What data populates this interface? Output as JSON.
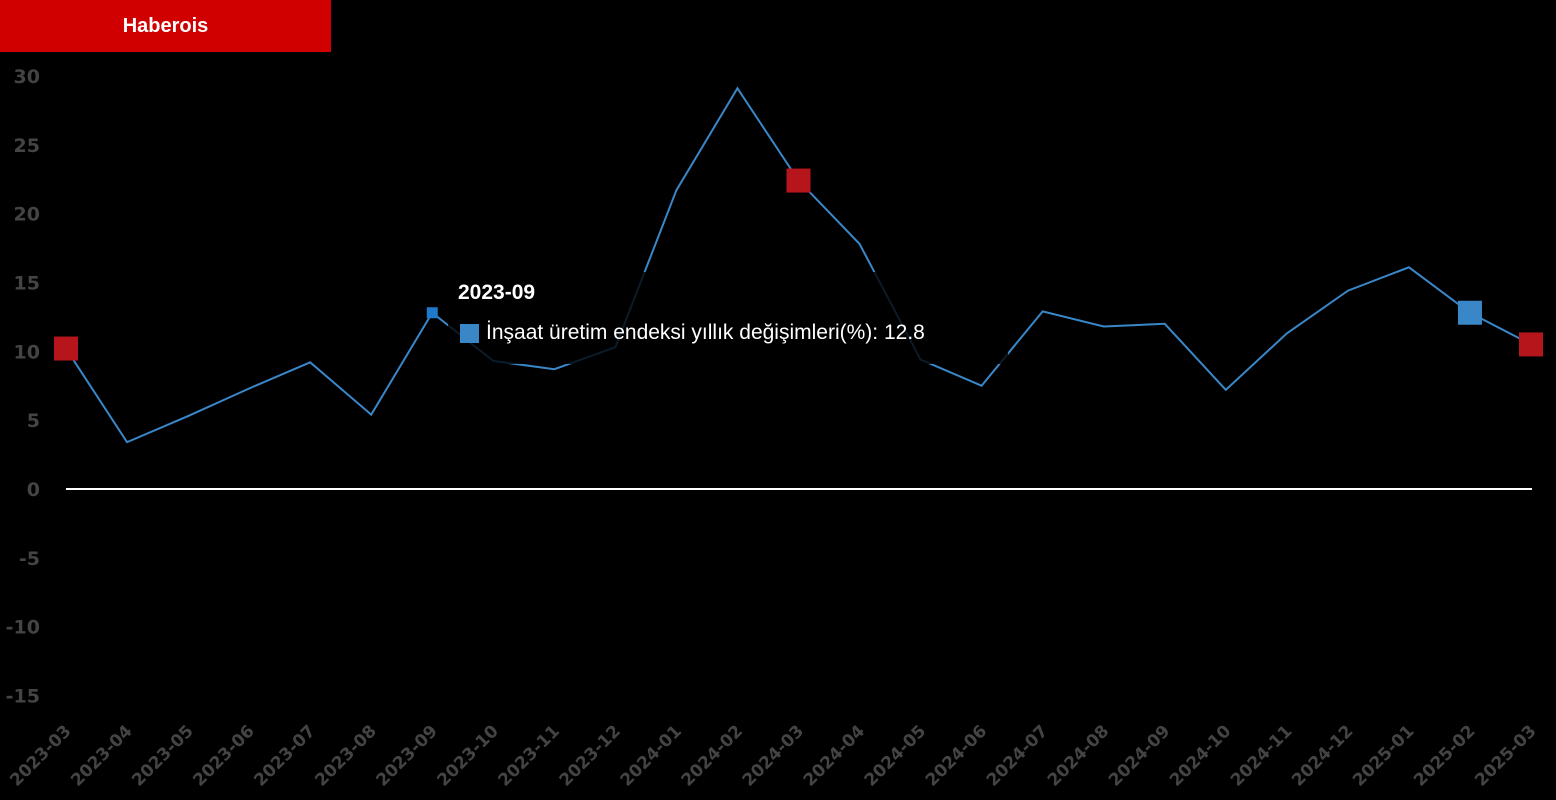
{
  "brand": "Haberois",
  "colors": {
    "line": "#3a87c8",
    "highlight": "#b5151b",
    "zero_line": "#ffffff",
    "background": "#000000"
  },
  "tooltip": {
    "title": "2023-09",
    "series_label": "İnşaat üretim endeksi yıllık değişimleri(%)",
    "value": "12.8",
    "text": "İnşaat üretim endeksi yıllık değişimleri(%): 12.8"
  },
  "chart_data": {
    "type": "line",
    "title": "",
    "xlabel": "",
    "ylabel": "",
    "ylim": [
      -17,
      32
    ],
    "yticks": [
      30,
      25,
      20,
      15,
      10,
      5,
      0,
      -5,
      -10,
      -15
    ],
    "grid": false,
    "categories": [
      "2023-03",
      "2023-04",
      "2023-05",
      "2023-06",
      "2023-07",
      "2023-08",
      "2023-09",
      "2023-10",
      "2023-11",
      "2023-12",
      "2024-01",
      "2024-02",
      "2024-03",
      "2024-04",
      "2024-05",
      "2024-06",
      "2024-07",
      "2024-08",
      "2024-09",
      "2024-10",
      "2024-11",
      "2024-12",
      "2025-01",
      "2025-02",
      "2025-03"
    ],
    "series": [
      {
        "name": "İnşaat üretim endeksi yıllık değişimleri(%)",
        "values": [
          10.2,
          3.4,
          5.3,
          7.3,
          9.2,
          5.4,
          12.8,
          9.3,
          8.7,
          10.3,
          21.7,
          29.1,
          22.4,
          17.8,
          9.4,
          7.5,
          12.9,
          11.8,
          12.0,
          7.2,
          11.3,
          14.4,
          16.1,
          12.8,
          10.5
        ]
      }
    ],
    "highlighted_red": [
      "2023-03",
      "2024-03",
      "2025-03"
    ],
    "highlighted_blue": [
      "2025-02"
    ],
    "hovered": "2023-09"
  }
}
